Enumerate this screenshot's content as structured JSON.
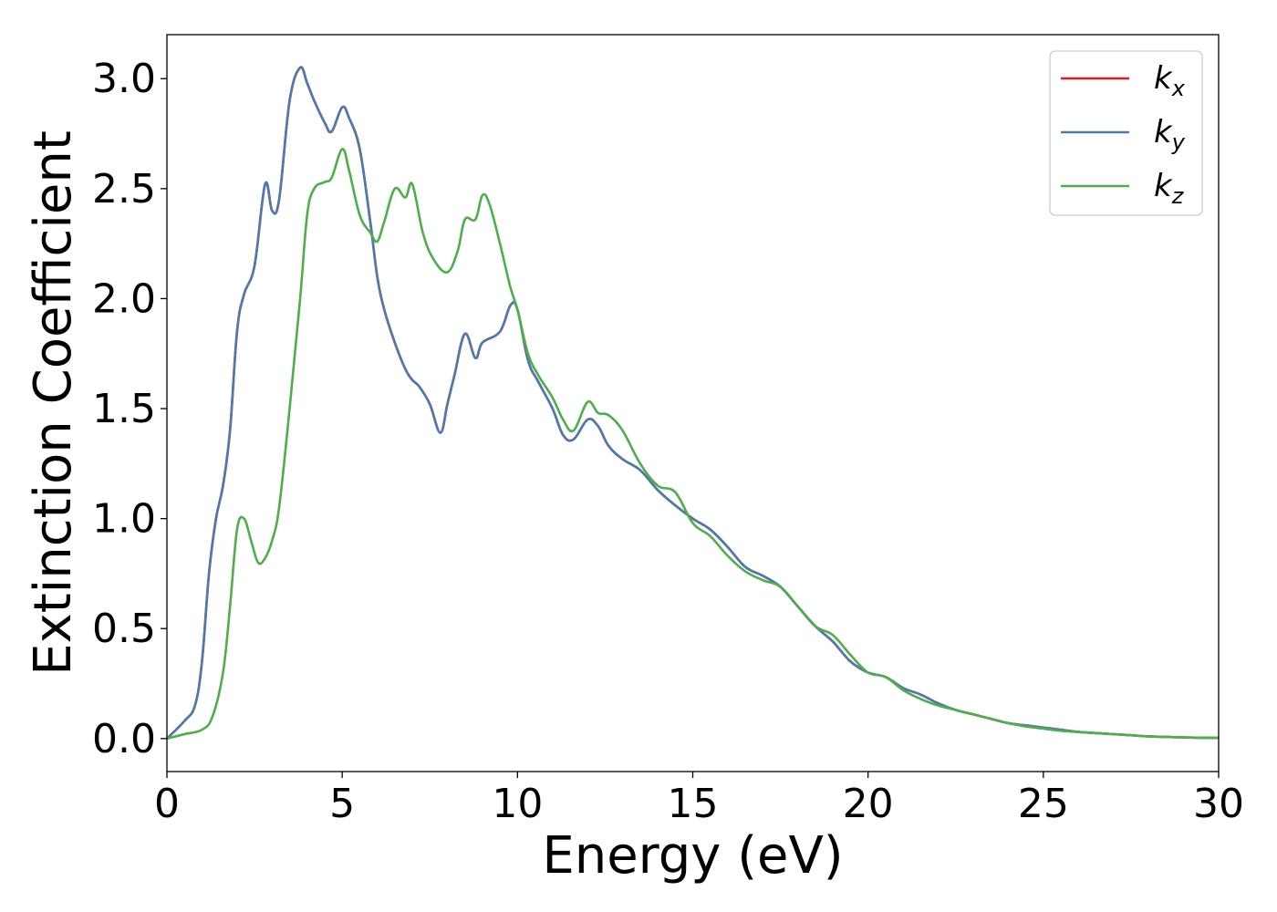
{
  "chart_data": {
    "type": "line",
    "title": "",
    "xlabel": "Energy (eV)",
    "ylabel": "Extinction Coefficient",
    "xlim": [
      0,
      30
    ],
    "ylim": [
      -0.15,
      3.2
    ],
    "xticks": [
      0,
      5,
      10,
      15,
      20,
      25,
      30
    ],
    "xtick_labels": [
      "0",
      "5",
      "10",
      "15",
      "20",
      "25",
      "30"
    ],
    "yticks": [
      0.0,
      0.5,
      1.0,
      1.5,
      2.0,
      2.5,
      3.0
    ],
    "ytick_labels": [
      "0.0",
      "0.5",
      "1.0",
      "1.5",
      "2.0",
      "2.5",
      "3.0"
    ],
    "grid": false,
    "legend_position": "top-right",
    "series": [
      {
        "name": "k_x",
        "legend": {
          "base": "k",
          "sub": "x"
        },
        "color": "#e41a1c",
        "x": [
          0,
          0.5,
          0.8,
          1.0,
          1.2,
          1.4,
          1.6,
          1.8,
          2.0,
          2.2,
          2.5,
          2.8,
          3.0,
          3.2,
          3.5,
          3.8,
          4.0,
          4.2,
          4.5,
          4.7,
          5.0,
          5.2,
          5.5,
          5.8,
          6.0,
          6.2,
          6.5,
          6.8,
          7.0,
          7.2,
          7.5,
          7.8,
          8.0,
          8.2,
          8.5,
          8.8,
          9.0,
          9.5,
          9.8,
          10.0,
          10.3,
          10.6,
          11.0,
          11.3,
          11.6,
          12.0,
          12.3,
          12.6,
          13.0,
          13.5,
          14.0,
          14.5,
          15.0,
          15.5,
          16.0,
          16.5,
          17.0,
          17.5,
          18.0,
          18.5,
          19.0,
          19.5,
          20.0,
          20.5,
          21.0,
          21.5,
          22.0,
          22.5,
          23.0,
          23.5,
          24.0,
          24.5,
          25.0,
          25.5,
          26.0,
          26.5,
          27.0,
          27.5,
          28.0,
          29.0,
          30.0
        ],
        "values": [
          0.0,
          0.08,
          0.15,
          0.35,
          0.75,
          1.0,
          1.15,
          1.4,
          1.85,
          2.02,
          2.15,
          2.52,
          2.4,
          2.45,
          2.9,
          3.05,
          2.98,
          2.9,
          2.8,
          2.76,
          2.87,
          2.82,
          2.68,
          2.35,
          2.1,
          1.95,
          1.8,
          1.68,
          1.63,
          1.6,
          1.52,
          1.39,
          1.52,
          1.65,
          1.84,
          1.73,
          1.8,
          1.85,
          1.97,
          1.95,
          1.72,
          1.62,
          1.5,
          1.38,
          1.36,
          1.45,
          1.42,
          1.33,
          1.27,
          1.22,
          1.13,
          1.06,
          1.0,
          0.95,
          0.87,
          0.78,
          0.74,
          0.69,
          0.6,
          0.51,
          0.44,
          0.35,
          0.3,
          0.28,
          0.23,
          0.2,
          0.16,
          0.13,
          0.11,
          0.09,
          0.07,
          0.06,
          0.05,
          0.04,
          0.03,
          0.025,
          0.02,
          0.015,
          0.01,
          0.005,
          0.003
        ]
      },
      {
        "name": "k_y",
        "legend": {
          "base": "k",
          "sub": "y"
        },
        "color": "#4a7ab0",
        "x": [
          0,
          0.5,
          0.8,
          1.0,
          1.2,
          1.4,
          1.6,
          1.8,
          2.0,
          2.2,
          2.5,
          2.8,
          3.0,
          3.2,
          3.5,
          3.8,
          4.0,
          4.2,
          4.5,
          4.7,
          5.0,
          5.2,
          5.5,
          5.8,
          6.0,
          6.2,
          6.5,
          6.8,
          7.0,
          7.2,
          7.5,
          7.8,
          8.0,
          8.2,
          8.5,
          8.8,
          9.0,
          9.5,
          9.8,
          10.0,
          10.3,
          10.6,
          11.0,
          11.3,
          11.6,
          12.0,
          12.3,
          12.6,
          13.0,
          13.5,
          14.0,
          14.5,
          15.0,
          15.5,
          16.0,
          16.5,
          17.0,
          17.5,
          18.0,
          18.5,
          19.0,
          19.5,
          20.0,
          20.5,
          21.0,
          21.5,
          22.0,
          22.5,
          23.0,
          23.5,
          24.0,
          24.5,
          25.0,
          25.5,
          26.0,
          26.5,
          27.0,
          27.5,
          28.0,
          29.0,
          30.0
        ],
        "values": [
          0.0,
          0.08,
          0.15,
          0.35,
          0.75,
          1.0,
          1.15,
          1.4,
          1.85,
          2.02,
          2.15,
          2.52,
          2.4,
          2.45,
          2.9,
          3.05,
          2.98,
          2.9,
          2.8,
          2.76,
          2.87,
          2.82,
          2.68,
          2.35,
          2.1,
          1.95,
          1.8,
          1.68,
          1.63,
          1.6,
          1.52,
          1.39,
          1.52,
          1.65,
          1.84,
          1.73,
          1.8,
          1.85,
          1.97,
          1.95,
          1.72,
          1.62,
          1.5,
          1.38,
          1.36,
          1.45,
          1.42,
          1.33,
          1.27,
          1.22,
          1.13,
          1.06,
          1.0,
          0.95,
          0.87,
          0.78,
          0.74,
          0.69,
          0.6,
          0.51,
          0.44,
          0.35,
          0.3,
          0.28,
          0.23,
          0.2,
          0.16,
          0.13,
          0.11,
          0.09,
          0.07,
          0.06,
          0.05,
          0.04,
          0.03,
          0.025,
          0.02,
          0.015,
          0.01,
          0.005,
          0.003
        ]
      },
      {
        "name": "k_z",
        "legend": {
          "base": "k",
          "sub": "z"
        },
        "color": "#4daf4a",
        "x": [
          0,
          0.5,
          1.0,
          1.3,
          1.6,
          1.8,
          2.0,
          2.2,
          2.4,
          2.6,
          2.8,
          3.0,
          3.2,
          3.5,
          3.8,
          4.0,
          4.2,
          4.5,
          4.7,
          5.0,
          5.2,
          5.5,
          5.8,
          6.0,
          6.2,
          6.5,
          6.8,
          7.0,
          7.3,
          7.6,
          8.0,
          8.3,
          8.5,
          8.8,
          9.0,
          9.2,
          9.5,
          9.8,
          10.0,
          10.3,
          10.6,
          11.0,
          11.3,
          11.6,
          12.0,
          12.3,
          12.6,
          13.0,
          13.5,
          14.0,
          14.5,
          15.0,
          15.5,
          16.0,
          16.5,
          17.0,
          17.5,
          18.0,
          18.5,
          19.0,
          19.5,
          20.0,
          20.5,
          21.0,
          21.5,
          22.0,
          22.5,
          23.0,
          23.5,
          24.0,
          24.5,
          25.0,
          25.5,
          26.0,
          26.5,
          27.0,
          27.5,
          28.0,
          29.0,
          30.0
        ],
        "values": [
          0.0,
          0.02,
          0.04,
          0.1,
          0.3,
          0.6,
          0.95,
          1.0,
          0.9,
          0.8,
          0.82,
          0.9,
          1.05,
          1.5,
          2.0,
          2.38,
          2.5,
          2.53,
          2.55,
          2.68,
          2.58,
          2.38,
          2.3,
          2.26,
          2.35,
          2.5,
          2.46,
          2.52,
          2.3,
          2.18,
          2.12,
          2.22,
          2.36,
          2.36,
          2.47,
          2.43,
          2.25,
          2.05,
          1.95,
          1.75,
          1.65,
          1.55,
          1.45,
          1.4,
          1.53,
          1.48,
          1.47,
          1.4,
          1.25,
          1.15,
          1.12,
          0.98,
          0.92,
          0.83,
          0.76,
          0.72,
          0.69,
          0.6,
          0.51,
          0.47,
          0.38,
          0.3,
          0.28,
          0.22,
          0.18,
          0.15,
          0.13,
          0.11,
          0.09,
          0.07,
          0.055,
          0.045,
          0.035,
          0.03,
          0.025,
          0.02,
          0.015,
          0.01,
          0.005,
          0.003
        ]
      }
    ]
  }
}
